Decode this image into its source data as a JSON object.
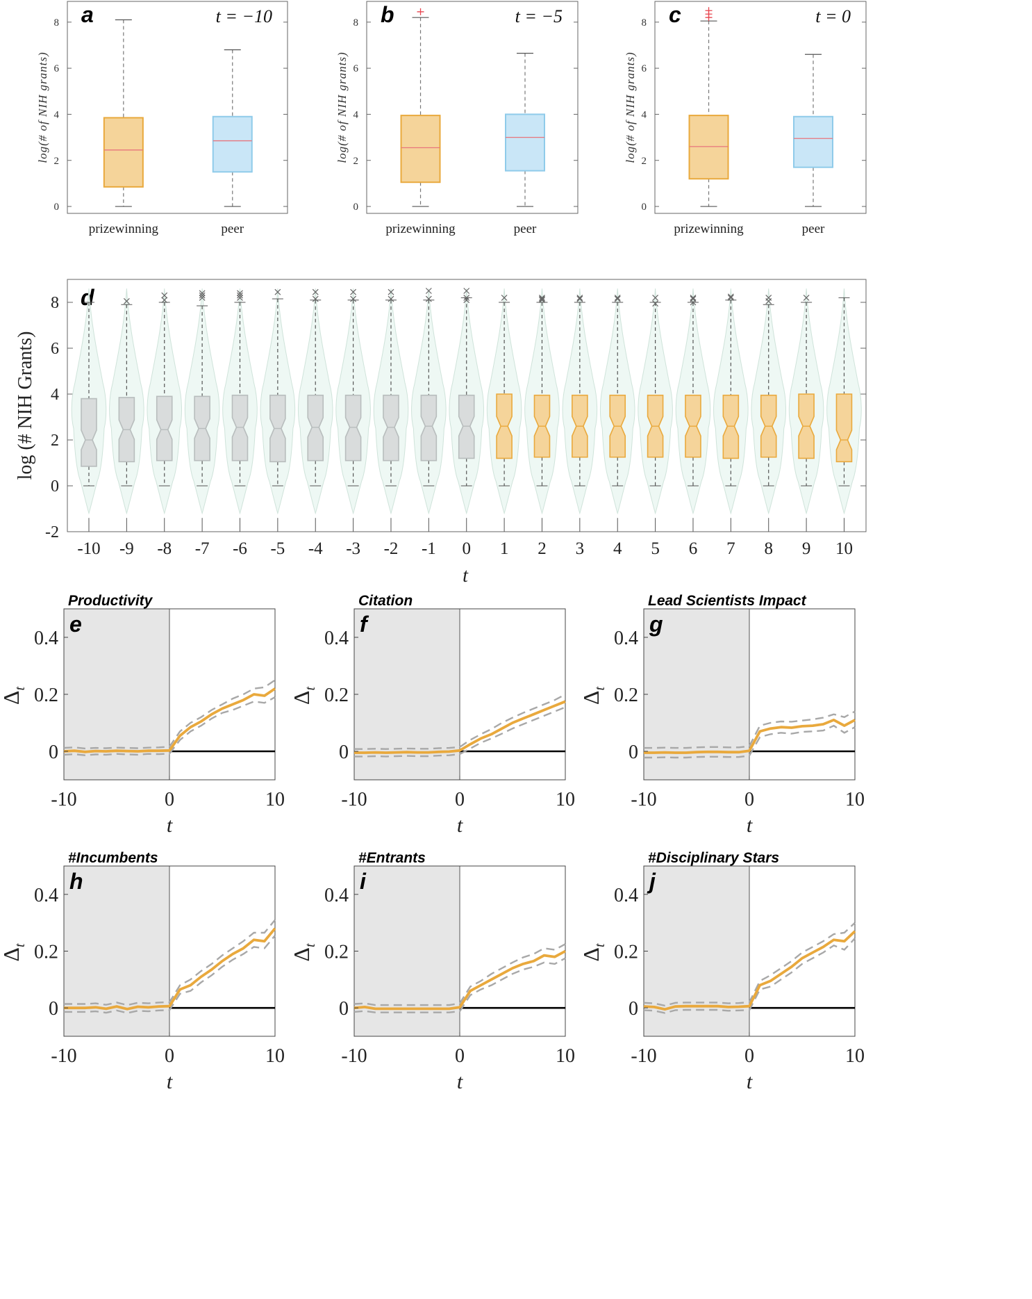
{
  "chart_data": [
    {
      "id": "a",
      "type": "box",
      "panel_label": "a",
      "annotation": "t = −10",
      "ylabel": "log(# of NIH grants)",
      "ylim": [
        -0.3,
        8.9
      ],
      "yticks": [
        0,
        2,
        4,
        6,
        8
      ],
      "categories": [
        "prizewinning",
        "peer"
      ],
      "boxes": [
        {
          "name": "prizewinning",
          "min": 0,
          "q1": 0.85,
          "median": 2.45,
          "q3": 3.85,
          "max": 8.1,
          "color": "#f5d49a",
          "edge": "#e9a93d",
          "outliers": []
        },
        {
          "name": "peer",
          "min": 0,
          "q1": 1.5,
          "median": 2.85,
          "q3": 3.9,
          "max": 6.8,
          "color": "#c9e6f7",
          "edge": "#8fcbea",
          "outliers": []
        }
      ]
    },
    {
      "id": "b",
      "type": "box",
      "panel_label": "b",
      "annotation": "t = −5",
      "ylabel": "log(# of NIH grants)",
      "ylim": [
        -0.3,
        8.9
      ],
      "yticks": [
        0,
        2,
        4,
        6,
        8
      ],
      "categories": [
        "prizewinning",
        "peer"
      ],
      "boxes": [
        {
          "name": "prizewinning",
          "min": 0,
          "q1": 1.05,
          "median": 2.55,
          "q3": 3.95,
          "max": 8.2,
          "color": "#f5d49a",
          "edge": "#e9a93d",
          "outliers": [
            8.45
          ]
        },
        {
          "name": "peer",
          "min": 0,
          "q1": 1.55,
          "median": 3.0,
          "q3": 4.0,
          "max": 6.65,
          "color": "#c9e6f7",
          "edge": "#8fcbea",
          "outliers": []
        }
      ]
    },
    {
      "id": "c",
      "type": "box",
      "panel_label": "c",
      "annotation": "t = 0",
      "ylabel": "log(# of NIH grants)",
      "ylim": [
        -0.3,
        8.9
      ],
      "yticks": [
        0,
        2,
        4,
        6,
        8
      ],
      "categories": [
        "prizewinning",
        "peer"
      ],
      "boxes": [
        {
          "name": "prizewinning",
          "min": 0,
          "q1": 1.2,
          "median": 2.6,
          "q3": 3.95,
          "max": 8.05,
          "color": "#f5d49a",
          "edge": "#e9a93d",
          "outliers": [
            8.2,
            8.35,
            8.5
          ]
        },
        {
          "name": "peer",
          "min": 0,
          "q1": 1.7,
          "median": 2.95,
          "q3": 3.9,
          "max": 6.6,
          "color": "#c9e6f7",
          "edge": "#8fcbea",
          "outliers": []
        }
      ]
    },
    {
      "id": "d",
      "type": "violin-box",
      "panel_label": "d",
      "ylabel": "log (# NIH Grants)",
      "xlabel": "t",
      "ylim": [
        -2,
        9
      ],
      "yticks": [
        -2,
        0,
        2,
        4,
        6,
        8
      ],
      "categories": [
        "-10",
        "-9",
        "-8",
        "-7",
        "-6",
        "-5",
        "-4",
        "-3",
        "-2",
        "-1",
        "0",
        "1",
        "2",
        "3",
        "4",
        "5",
        "6",
        "7",
        "8",
        "9",
        "10"
      ],
      "q1": [
        0.85,
        1.05,
        1.1,
        1.1,
        1.1,
        1.05,
        1.1,
        1.1,
        1.1,
        1.1,
        1.2,
        1.2,
        1.25,
        1.25,
        1.25,
        1.25,
        1.25,
        1.2,
        1.25,
        1.2,
        1.05
      ],
      "median": [
        2.0,
        2.45,
        2.45,
        2.5,
        2.55,
        2.5,
        2.55,
        2.55,
        2.55,
        2.6,
        2.6,
        2.6,
        2.6,
        2.6,
        2.6,
        2.6,
        2.6,
        2.6,
        2.6,
        2.6,
        2.0
      ],
      "q3": [
        3.8,
        3.85,
        3.9,
        3.9,
        3.95,
        3.95,
        3.95,
        3.95,
        3.95,
        3.95,
        3.95,
        4.0,
        3.95,
        3.95,
        3.95,
        3.95,
        3.95,
        3.95,
        3.95,
        4.0,
        4.0
      ],
      "whisker_max": [
        8.0,
        7.9,
        8.0,
        7.85,
        8.0,
        8.15,
        8.1,
        8.1,
        8.1,
        8.1,
        8.2,
        8.0,
        8.0,
        8.0,
        8.0,
        8.0,
        8.0,
        8.1,
        7.9,
        8.0,
        8.2
      ],
      "outliers": [
        [],
        [
          8.05
        ],
        [
          8.1,
          8.3
        ],
        [
          8.2,
          8.3,
          8.4
        ],
        [
          8.2,
          8.3,
          8.4
        ],
        [
          8.45
        ],
        [
          8.15,
          8.45
        ],
        [
          8.15,
          8.45
        ],
        [
          8.15,
          8.45
        ],
        [
          8.15,
          8.5
        ],
        [
          8.1,
          8.2,
          8.5
        ],
        [
          8.2
        ],
        [
          8.1,
          8.15,
          8.2
        ],
        [
          8.15,
          8.2
        ],
        [
          8.15,
          8.2
        ],
        [
          7.95,
          8.2
        ],
        [
          8.0,
          8.15,
          8.2
        ],
        [
          8.2,
          8.25
        ],
        [
          8.05,
          8.2
        ],
        [
          8.2
        ],
        []
      ],
      "before_color": "#d9dcdc",
      "before_edge": "#b8bdbd",
      "after_color": "#f5d49a",
      "after_edge": "#e9a93d",
      "violin_fill": "#eef8f4",
      "violin_edge": "#cfe3da"
    },
    {
      "id": "e",
      "type": "line",
      "panel_label": "e",
      "title": "Productivity",
      "xlabel": "t",
      "ylabel": "Δt",
      "xlim": [
        -10,
        10
      ],
      "ylim": [
        -0.1,
        0.5
      ],
      "xticks": [
        -10,
        0,
        10
      ],
      "yticks": [
        0,
        0.2,
        0.4
      ],
      "x": [
        -10,
        -9,
        -8,
        -7,
        -6,
        -5,
        -4,
        -3,
        -2,
        -1,
        0,
        1,
        2,
        3,
        4,
        5,
        6,
        7,
        8,
        9,
        10
      ],
      "series": [
        {
          "name": "estimate",
          "values": [
            0,
            0.002,
            -0.002,
            0.001,
            0,
            0.002,
            0.001,
            0,
            0.002,
            0.002,
            0.003,
            0.055,
            0.085,
            0.105,
            0.13,
            0.15,
            0.165,
            0.18,
            0.2,
            0.195,
            0.22
          ]
        },
        {
          "name": "upper",
          "values": [
            0.012,
            0.014,
            0.01,
            0.012,
            0.011,
            0.013,
            0.012,
            0.011,
            0.013,
            0.014,
            0.016,
            0.07,
            0.1,
            0.12,
            0.145,
            0.165,
            0.185,
            0.2,
            0.22,
            0.225,
            0.25
          ]
        },
        {
          "name": "lower",
          "values": [
            -0.012,
            -0.01,
            -0.014,
            -0.011,
            -0.012,
            -0.009,
            -0.011,
            -0.012,
            -0.009,
            -0.01,
            -0.008,
            0.04,
            0.07,
            0.09,
            0.115,
            0.135,
            0.145,
            0.16,
            0.175,
            0.17,
            0.19
          ]
        }
      ],
      "shade_range": [
        -10,
        0
      ]
    },
    {
      "id": "f",
      "type": "line",
      "panel_label": "f",
      "title": "Citation",
      "xlabel": "t",
      "ylabel": "Δt",
      "xlim": [
        -10,
        10
      ],
      "ylim": [
        -0.1,
        0.5
      ],
      "xticks": [
        -10,
        0,
        10
      ],
      "yticks": [
        0,
        0.2,
        0.4
      ],
      "x": [
        -10,
        -9,
        -8,
        -7,
        -6,
        -5,
        -4,
        -3,
        -2,
        -1,
        0,
        1,
        2,
        3,
        4,
        5,
        6,
        7,
        8,
        9,
        10
      ],
      "series": [
        {
          "name": "estimate",
          "values": [
            -0.005,
            -0.005,
            -0.004,
            -0.005,
            -0.004,
            -0.003,
            -0.004,
            -0.004,
            -0.002,
            -0.001,
            0.003,
            0.025,
            0.045,
            0.06,
            0.08,
            0.1,
            0.115,
            0.13,
            0.145,
            0.16,
            0.175
          ]
        },
        {
          "name": "upper",
          "values": [
            0.008,
            0.008,
            0.009,
            0.008,
            0.009,
            0.01,
            0.009,
            0.009,
            0.011,
            0.012,
            0.015,
            0.04,
            0.06,
            0.078,
            0.1,
            0.118,
            0.135,
            0.15,
            0.165,
            0.18,
            0.2
          ]
        },
        {
          "name": "lower",
          "values": [
            -0.018,
            -0.018,
            -0.017,
            -0.018,
            -0.017,
            -0.016,
            -0.017,
            -0.017,
            -0.015,
            -0.014,
            -0.01,
            0.01,
            0.03,
            0.045,
            0.062,
            0.08,
            0.095,
            0.11,
            0.125,
            0.14,
            0.155
          ]
        }
      ],
      "shade_range": [
        -10,
        0
      ]
    },
    {
      "id": "g",
      "type": "line",
      "panel_label": "g",
      "title": "Lead Scientists Impact",
      "xlabel": "t",
      "ylabel": "Δt",
      "xlim": [
        -10,
        10
      ],
      "ylim": [
        -0.1,
        0.5
      ],
      "xticks": [
        -10,
        0,
        10
      ],
      "yticks": [
        0,
        0.2,
        0.4
      ],
      "x": [
        -10,
        -9,
        -8,
        -7,
        -6,
        -5,
        -4,
        -3,
        -2,
        -1,
        0,
        1,
        2,
        3,
        4,
        5,
        6,
        7,
        8,
        9,
        10
      ],
      "series": [
        {
          "name": "estimate",
          "values": [
            -0.005,
            -0.005,
            -0.004,
            -0.005,
            -0.005,
            -0.003,
            -0.002,
            -0.002,
            -0.003,
            -0.003,
            0.002,
            0.07,
            0.08,
            0.085,
            0.083,
            0.088,
            0.09,
            0.095,
            0.11,
            0.09,
            0.11
          ]
        },
        {
          "name": "upper",
          "values": [
            0.012,
            0.012,
            0.013,
            0.012,
            0.012,
            0.014,
            0.015,
            0.015,
            0.014,
            0.014,
            0.018,
            0.09,
            0.1,
            0.105,
            0.104,
            0.108,
            0.112,
            0.118,
            0.13,
            0.12,
            0.14
          ]
        },
        {
          "name": "lower",
          "values": [
            -0.022,
            -0.022,
            -0.021,
            -0.022,
            -0.022,
            -0.02,
            -0.019,
            -0.019,
            -0.02,
            -0.02,
            -0.015,
            0.05,
            0.06,
            0.065,
            0.062,
            0.068,
            0.07,
            0.073,
            0.09,
            0.065,
            0.085
          ]
        }
      ],
      "shade_range": [
        -10,
        0
      ]
    },
    {
      "id": "h",
      "type": "line",
      "panel_label": "h",
      "title": "#Incumbents",
      "xlabel": "t",
      "ylabel": "Δt",
      "xlim": [
        -10,
        10
      ],
      "ylim": [
        -0.1,
        0.5
      ],
      "xticks": [
        -10,
        0,
        10
      ],
      "yticks": [
        0,
        0.2,
        0.4
      ],
      "x": [
        -10,
        -9,
        -8,
        -7,
        -6,
        -5,
        -4,
        -3,
        -2,
        -1,
        0,
        1,
        2,
        3,
        4,
        5,
        6,
        7,
        8,
        9,
        10
      ],
      "series": [
        {
          "name": "estimate",
          "values": [
            0,
            0,
            0,
            0.002,
            -0.003,
            0.005,
            -0.004,
            0.004,
            0.002,
            0.005,
            0.006,
            0.065,
            0.08,
            0.11,
            0.135,
            0.165,
            0.19,
            0.21,
            0.24,
            0.235,
            0.28
          ]
        },
        {
          "name": "upper",
          "values": [
            0.014,
            0.014,
            0.014,
            0.016,
            0.011,
            0.019,
            0.01,
            0.018,
            0.016,
            0.019,
            0.02,
            0.08,
            0.1,
            0.13,
            0.155,
            0.185,
            0.21,
            0.235,
            0.265,
            0.265,
            0.31
          ]
        },
        {
          "name": "lower",
          "values": [
            -0.014,
            -0.014,
            -0.014,
            -0.012,
            -0.017,
            -0.009,
            -0.018,
            -0.01,
            -0.012,
            -0.009,
            -0.008,
            0.05,
            0.06,
            0.09,
            0.115,
            0.145,
            0.17,
            0.19,
            0.215,
            0.21,
            0.255
          ]
        }
      ],
      "shade_range": [
        -10,
        0
      ]
    },
    {
      "id": "i",
      "type": "line",
      "panel_label": "i",
      "title": "#Entrants",
      "xlabel": "t",
      "ylabel": "Δt",
      "xlim": [
        -10,
        10
      ],
      "ylim": [
        -0.1,
        0.5
      ],
      "xticks": [
        -10,
        0,
        10
      ],
      "yticks": [
        0,
        0.2,
        0.4
      ],
      "x": [
        -10,
        -9,
        -8,
        -7,
        -6,
        -5,
        -4,
        -3,
        -2,
        -1,
        0,
        1,
        2,
        3,
        4,
        5,
        6,
        7,
        8,
        9,
        10
      ],
      "series": [
        {
          "name": "estimate",
          "values": [
            0,
            0.003,
            -0.003,
            -0.003,
            -0.003,
            -0.003,
            -0.003,
            -0.003,
            -0.003,
            -0.003,
            0.002,
            0.06,
            0.08,
            0.1,
            0.12,
            0.14,
            0.155,
            0.165,
            0.185,
            0.18,
            0.2
          ]
        },
        {
          "name": "upper",
          "values": [
            0.014,
            0.016,
            0.01,
            0.01,
            0.01,
            0.01,
            0.01,
            0.01,
            0.01,
            0.01,
            0.016,
            0.075,
            0.095,
            0.12,
            0.14,
            0.16,
            0.178,
            0.19,
            0.21,
            0.205,
            0.225
          ]
        },
        {
          "name": "lower",
          "values": [
            -0.014,
            -0.011,
            -0.016,
            -0.016,
            -0.016,
            -0.016,
            -0.016,
            -0.016,
            -0.016,
            -0.016,
            -0.012,
            0.045,
            0.065,
            0.08,
            0.1,
            0.12,
            0.135,
            0.145,
            0.16,
            0.155,
            0.175
          ]
        }
      ],
      "shade_range": [
        -10,
        0
      ]
    },
    {
      "id": "j",
      "type": "line",
      "panel_label": "j",
      "title": "#Disciplinary Stars",
      "xlabel": "t",
      "ylabel": "Δt",
      "xlim": [
        -10,
        10
      ],
      "ylim": [
        -0.1,
        0.5
      ],
      "xticks": [
        -10,
        0,
        10
      ],
      "yticks": [
        0,
        0.2,
        0.4
      ],
      "x": [
        -10,
        -9,
        -8,
        -7,
        -6,
        -5,
        -4,
        -3,
        -2,
        -1,
        0,
        1,
        2,
        3,
        4,
        5,
        6,
        7,
        8,
        9,
        10
      ],
      "series": [
        {
          "name": "estimate",
          "values": [
            0.005,
            0.003,
            -0.005,
            0.005,
            0.006,
            0.006,
            0.006,
            0.006,
            0.003,
            0.004,
            0.006,
            0.08,
            0.095,
            0.12,
            0.145,
            0.175,
            0.195,
            0.215,
            0.24,
            0.235,
            0.27
          ]
        },
        {
          "name": "upper",
          "values": [
            0.018,
            0.016,
            0.008,
            0.018,
            0.019,
            0.019,
            0.019,
            0.019,
            0.016,
            0.017,
            0.02,
            0.095,
            0.115,
            0.14,
            0.165,
            0.195,
            0.215,
            0.235,
            0.26,
            0.265,
            0.3
          ]
        },
        {
          "name": "lower",
          "values": [
            -0.008,
            -0.01,
            -0.018,
            -0.008,
            -0.007,
            -0.007,
            -0.007,
            -0.007,
            -0.01,
            -0.009,
            -0.008,
            0.065,
            0.075,
            0.1,
            0.125,
            0.155,
            0.175,
            0.195,
            0.22,
            0.205,
            0.245
          ]
        }
      ],
      "shade_range": [
        -10,
        0
      ]
    }
  ],
  "colors": {
    "estimate_line": "#e9a93d",
    "ci_line": "#a8a8a8",
    "zero_line": "#000000",
    "shade": "#e6e6e6",
    "axis": "#666666",
    "outlier_red": "#e8454f",
    "outlier_gray": "#666666"
  }
}
